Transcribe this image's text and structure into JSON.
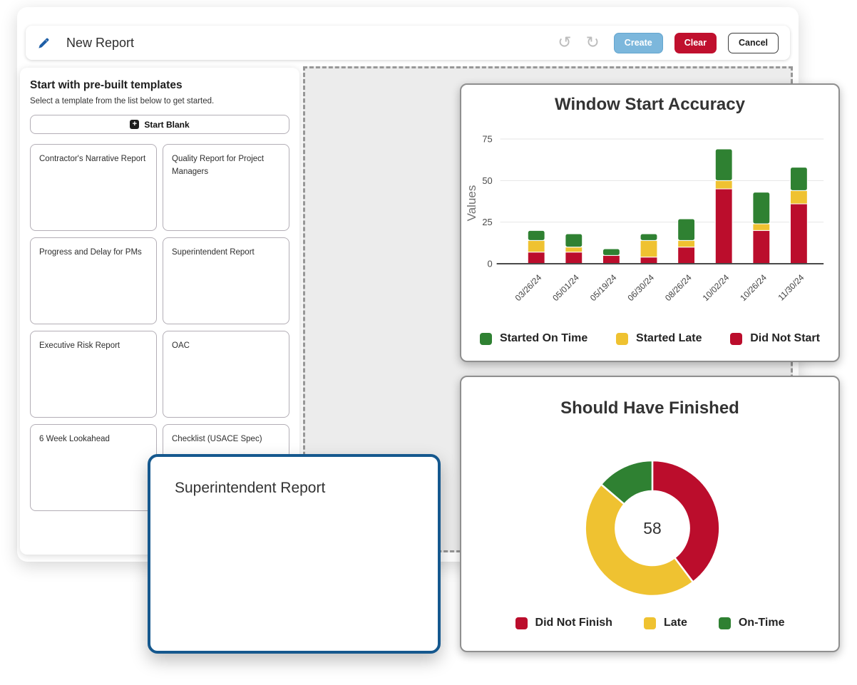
{
  "header": {
    "title": "New Report",
    "create_label": "Create",
    "clear_label": "Clear",
    "cancel_label": "Cancel"
  },
  "icons": {
    "pencil": "pencil-edit",
    "undo": "↺",
    "redo": "↻",
    "plus": "+"
  },
  "sidebar": {
    "title": "Start with pre-built templates",
    "subtitle": "Select a template from the list below to get started.",
    "start_blank_label": "Start Blank",
    "templates": [
      "Contractor's Narrative Report",
      "Quality Report for Project Managers",
      "Progress and Delay for PMs",
      "Superintendent Report",
      "Executive Risk Report",
      "OAC",
      "6 Week Lookahead",
      "Checklist (USACE Spec)"
    ]
  },
  "drag_card": {
    "label": "Superintendent Report"
  },
  "colors": {
    "green": "#2f8132",
    "yellow": "#efc231",
    "red": "#bb0d2c",
    "create_blue": "#7cb7dc",
    "clear_red": "#c0102e",
    "drag_border_blue": "#15588e"
  },
  "chart_data": [
    {
      "type": "bar",
      "stacked": true,
      "title": "Window Start Accuracy",
      "ylabel": "Values",
      "xlabel": "",
      "ylim": [
        0,
        75
      ],
      "yticks": [
        0,
        25,
        50,
        75
      ],
      "grid": true,
      "categories": [
        "03/26/24",
        "05/01/24",
        "05/19/24",
        "06/30/24",
        "08/26/24",
        "10/02/24",
        "10/26/24",
        "11/30/24"
      ],
      "series": [
        {
          "name": "Did Not Start",
          "color": "#bb0d2c",
          "values": [
            7,
            7,
            5,
            4,
            10,
            45,
            20,
            36
          ]
        },
        {
          "name": "Started Late",
          "color": "#efc231",
          "values": [
            7,
            3,
            0,
            10,
            4,
            5,
            4,
            8
          ]
        },
        {
          "name": "Started On Time",
          "color": "#2f8132",
          "values": [
            6,
            8,
            4,
            4,
            13,
            19,
            19,
            14
          ]
        }
      ],
      "legend_position": "bottom",
      "legend": [
        {
          "label": "Started On Time",
          "color": "#2f8132"
        },
        {
          "label": "Started Late",
          "color": "#efc231"
        },
        {
          "label": "Did Not Start",
          "color": "#bb0d2c"
        }
      ]
    },
    {
      "type": "pie",
      "donut": true,
      "title": "Should Have Finished",
      "center_label": "58",
      "total": 58,
      "slices": [
        {
          "label": "Did Not Finish",
          "value": 23,
          "color": "#bb0d2c"
        },
        {
          "label": "Late",
          "value": 27,
          "color": "#efc231"
        },
        {
          "label": "On-Time",
          "value": 8,
          "color": "#2f8132"
        }
      ],
      "legend_position": "bottom",
      "legend": [
        {
          "label": "Did Not Finish",
          "color": "#bb0d2c"
        },
        {
          "label": "Late",
          "color": "#efc231"
        },
        {
          "label": "On-Time",
          "color": "#2f8132"
        }
      ]
    }
  ]
}
